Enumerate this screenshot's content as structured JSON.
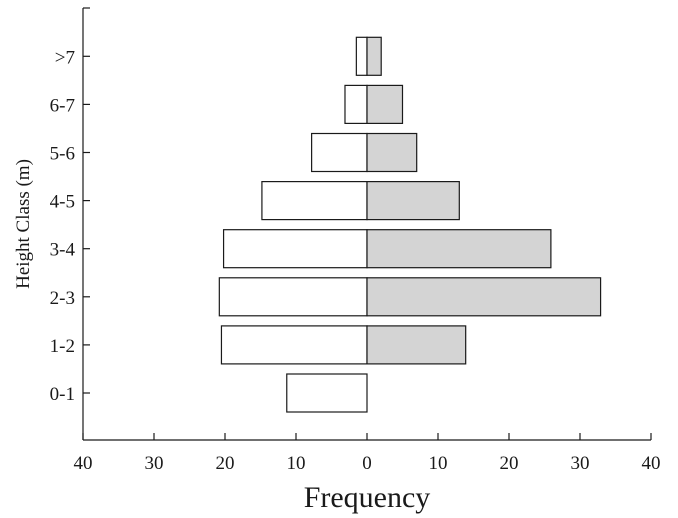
{
  "chart_data": {
    "type": "bar",
    "orientation": "horizontal-back-to-back",
    "categories": [
      "0-1",
      "1-2",
      "2-3",
      "3-4",
      "4-5",
      "5-6",
      "6-7",
      ">7"
    ],
    "series": [
      {
        "values": [
          11.3,
          20.5,
          20.8,
          20.2,
          14.8,
          7.8,
          3.1,
          1.5
        ]
      },
      {
        "values": [
          0,
          13.9,
          32.9,
          25.9,
          13.0,
          7.0,
          5.0,
          2.0
        ]
      }
    ],
    "xlabel": "Frequency",
    "ylabel": "Height Class (m)",
    "xlim": [
      -40,
      40
    ],
    "x_ticks": [
      -40,
      -30,
      -20,
      -10,
      0,
      10,
      20,
      30,
      40
    ],
    "x_tick_labels": [
      "40",
      "30",
      "20",
      "10",
      "0",
      "10",
      "20",
      "30",
      "40"
    ],
    "colors": {
      "left": "#ffffff",
      "right": "#d4d4d4",
      "stroke": "#1a1a1a"
    },
    "grid": false,
    "legend": "none"
  }
}
